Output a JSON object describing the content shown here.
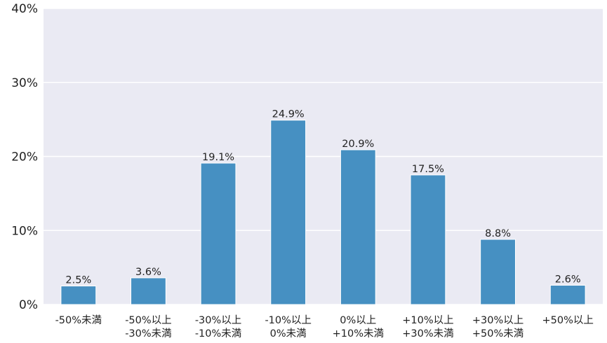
{
  "chart_data": {
    "type": "bar",
    "categories": [
      [
        "-50%未満"
      ],
      [
        "-50%以上",
        "-30%未満"
      ],
      [
        "-30%以上",
        "-10%未満"
      ],
      [
        "-10%以上",
        "0%未満"
      ],
      [
        "0%以上",
        "+10%未満"
      ],
      [
        "+10%以上",
        "+30%未満"
      ],
      [
        "+30%以上",
        "+50%未満"
      ],
      [
        "+50%以上"
      ]
    ],
    "values": [
      2.5,
      3.6,
      19.1,
      24.9,
      20.9,
      17.5,
      8.8,
      2.6
    ],
    "data_labels": [
      "2.5%",
      "3.6%",
      "19.1%",
      "24.9%",
      "20.9%",
      "17.5%",
      "8.8%",
      "2.6%"
    ],
    "ylim": [
      0,
      40
    ],
    "yticks": [
      0,
      10,
      20,
      30,
      40
    ],
    "ytick_labels": [
      "0%",
      "10%",
      "20%",
      "30%",
      "40%"
    ],
    "grid": true,
    "colors": {
      "bar": "#4690c2",
      "plot_background": "#eaeaf3",
      "grid": "#ffffff"
    }
  }
}
